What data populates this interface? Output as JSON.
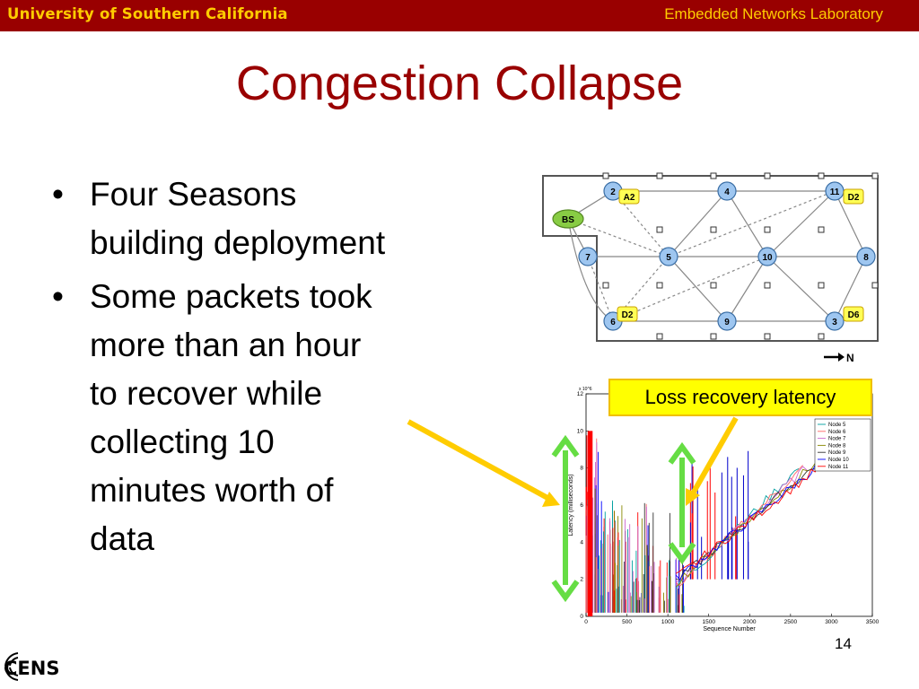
{
  "header": {
    "university": "University of Southern California",
    "lab": "Embedded Networks Laboratory"
  },
  "title": "Congestion Collapse",
  "bullets": [
    {
      "lines": [
        "Four Seasons",
        "building deployment"
      ]
    },
    {
      "lines": [
        "Some packets took",
        "more than an hour",
        "to recover while",
        "collecting 10",
        "minutes worth of",
        "data"
      ]
    }
  ],
  "callout": "Loss recovery latency",
  "page_number": "14",
  "logo": {
    "text": "CENS",
    "icon": "cens-logo"
  },
  "network_map": {
    "nodes": [
      "BS",
      "2",
      "4",
      "11",
      "7",
      "5",
      "10",
      "8",
      "6",
      "9",
      "3"
    ],
    "tags": [
      "A2",
      "D2",
      "D2",
      "D6"
    ],
    "compass": "N"
  },
  "chart_data": {
    "type": "line",
    "ylabel": "Latency (milliseconds)",
    "xlabel": "Sequence Number",
    "y_exponent": "x 10^6",
    "xlim": [
      0,
      3500
    ],
    "ylim": [
      0,
      12
    ],
    "xticks": [
      "0",
      "500",
      "1000",
      "1500",
      "2000",
      "2500",
      "3000",
      "3500"
    ],
    "yticks": [
      "0",
      "2",
      "4",
      "6",
      "8",
      "10",
      "12"
    ],
    "legend_position": "top-right",
    "series": [
      {
        "name": "Node 5",
        "color": "#00a0a0"
      },
      {
        "name": "Node 6",
        "color": "#ff6666"
      },
      {
        "name": "Node 7",
        "color": "#cc66cc"
      },
      {
        "name": "Node 8",
        "color": "#888800"
      },
      {
        "name": "Node 9",
        "color": "#333333"
      },
      {
        "name": "Node 10",
        "color": "#0000ff"
      },
      {
        "name": "Node 11",
        "color": "#ff0000"
      }
    ]
  },
  "colors": {
    "header": "#990000",
    "header_text": "#ffcc00",
    "title": "#990000",
    "arrow_green": "#66dd44",
    "arrow_yellow": "#ffcc00"
  }
}
